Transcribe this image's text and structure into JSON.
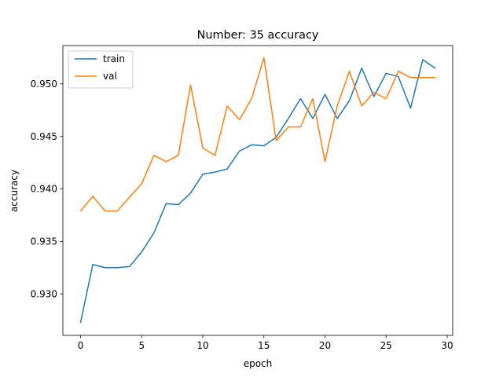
{
  "chart_data": {
    "type": "line",
    "title": "Number: 35 accuracy",
    "xlabel": "epoch",
    "ylabel": "accuracy",
    "xlim": [
      -1.45,
      30.45
    ],
    "ylim": [
      0.92605,
      0.95365
    ],
    "x_ticks": [
      0,
      5,
      10,
      15,
      20,
      25,
      30
    ],
    "y_ticks": [
      0.93,
      0.935,
      0.94,
      0.945,
      0.95
    ],
    "x_tick_labels": [
      "0",
      "5",
      "10",
      "15",
      "20",
      "25",
      "30"
    ],
    "y_tick_labels": [
      "0.930",
      "0.935",
      "0.940",
      "0.945",
      "0.950"
    ],
    "grid": false,
    "legend_position": "upper left",
    "x": [
      0,
      1,
      2,
      3,
      4,
      5,
      6,
      7,
      8,
      9,
      10,
      11,
      12,
      13,
      14,
      15,
      16,
      17,
      18,
      19,
      20,
      21,
      22,
      23,
      24,
      25,
      26,
      27,
      28,
      29
    ],
    "series": [
      {
        "name": "train",
        "color": "#1f77b4",
        "values": [
          0.9273,
          0.9328,
          0.9325,
          0.9325,
          0.9326,
          0.934,
          0.9358,
          0.9386,
          0.9385,
          0.9396,
          0.9414,
          0.9416,
          0.9419,
          0.9436,
          0.9442,
          0.9441,
          0.9449,
          0.9467,
          0.9486,
          0.9467,
          0.949,
          0.9467,
          0.9484,
          0.9515,
          0.9488,
          0.951,
          0.9507,
          0.9477,
          0.9523,
          0.9515
        ]
      },
      {
        "name": "val",
        "color": "#ff7f0e",
        "values": [
          0.9379,
          0.9393,
          0.9379,
          0.9379,
          0.9392,
          0.9405,
          0.9432,
          0.9426,
          0.9432,
          0.9499,
          0.9439,
          0.9432,
          0.9479,
          0.9466,
          0.9486,
          0.9525,
          0.9446,
          0.9459,
          0.9459,
          0.9486,
          0.9426,
          0.9479,
          0.9512,
          0.9479,
          0.9492,
          0.9486,
          0.9512,
          0.9506,
          0.9506,
          0.9506
        ]
      }
    ]
  }
}
